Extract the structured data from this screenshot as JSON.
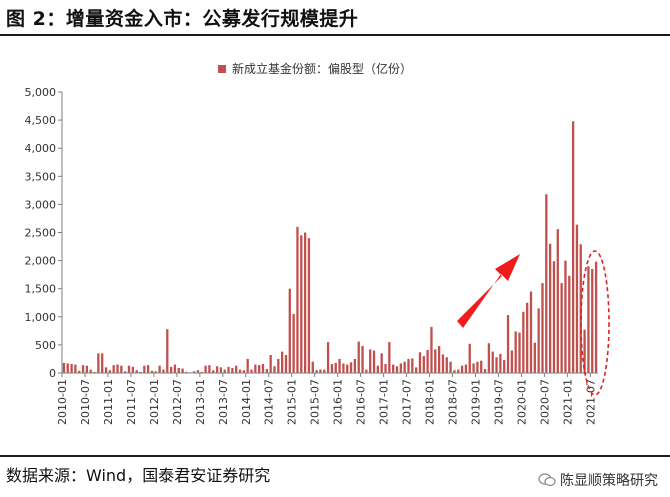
{
  "figure_title": "图 2：增量资金入市：公募发行规模提升",
  "source_text": "数据来源：Wind，国泰君安证券研究",
  "watermark_text": "陈显顺策略研究",
  "colors": {
    "bar": "#c0504d",
    "arrow": "#ee1c1c",
    "ellipse": "#e02020"
  },
  "chart_data": {
    "type": "bar",
    "title": "",
    "legend": "新成立基金份额：偏股型（亿份）",
    "legend_position": "top-center",
    "xlabel": "",
    "ylabel": "",
    "ylim": [
      0,
      5000
    ],
    "yticks": [
      0,
      500,
      1000,
      1500,
      2000,
      2500,
      3000,
      3500,
      4000,
      4500,
      5000
    ],
    "ytick_labels": [
      "0",
      "500",
      "1,000",
      "1,500",
      "2,000",
      "2,500",
      "3,000",
      "3,500",
      "4,000",
      "4,500",
      "5,000"
    ],
    "xtick_labels": [
      "2010-01",
      "2010-07",
      "2011-01",
      "2011-07",
      "2012-01",
      "2012-07",
      "2013-01",
      "2013-07",
      "2014-01",
      "2014-07",
      "2015-01",
      "2015-07",
      "2016-01",
      "2016-07",
      "2017-01",
      "2017-07",
      "2018-01",
      "2018-07",
      "2019-01",
      "2019-07",
      "2020-01",
      "2020-07",
      "2021-01",
      "2021-07"
    ],
    "grid": false,
    "categories": [
      "2010-01",
      "2010-02",
      "2010-03",
      "2010-04",
      "2010-05",
      "2010-06",
      "2010-07",
      "2010-08",
      "2010-09",
      "2010-10",
      "2010-11",
      "2010-12",
      "2011-01",
      "2011-02",
      "2011-03",
      "2011-04",
      "2011-05",
      "2011-06",
      "2011-07",
      "2011-08",
      "2011-09",
      "2011-10",
      "2011-11",
      "2011-12",
      "2012-01",
      "2012-02",
      "2012-03",
      "2012-04",
      "2012-05",
      "2012-06",
      "2012-07",
      "2012-08",
      "2012-09",
      "2012-10",
      "2012-11",
      "2012-12",
      "2013-01",
      "2013-02",
      "2013-03",
      "2013-04",
      "2013-05",
      "2013-06",
      "2013-07",
      "2013-08",
      "2013-09",
      "2013-10",
      "2013-11",
      "2013-12",
      "2014-01",
      "2014-02",
      "2014-03",
      "2014-04",
      "2014-05",
      "2014-06",
      "2014-07",
      "2014-08",
      "2014-09",
      "2014-10",
      "2014-11",
      "2014-12",
      "2015-01",
      "2015-02",
      "2015-03",
      "2015-04",
      "2015-05",
      "2015-06",
      "2015-07",
      "2015-08",
      "2015-09",
      "2015-10",
      "2015-11",
      "2015-12",
      "2016-01",
      "2016-02",
      "2016-03",
      "2016-04",
      "2016-05",
      "2016-06",
      "2016-07",
      "2016-08",
      "2016-09",
      "2016-10",
      "2016-11",
      "2016-12",
      "2017-01",
      "2017-02",
      "2017-03",
      "2017-04",
      "2017-05",
      "2017-06",
      "2017-07",
      "2017-08",
      "2017-09",
      "2017-10",
      "2017-11",
      "2017-12",
      "2018-01",
      "2018-02",
      "2018-03",
      "2018-04",
      "2018-05",
      "2018-06",
      "2018-07",
      "2018-08",
      "2018-09",
      "2018-10",
      "2018-11",
      "2018-12",
      "2019-01",
      "2019-02",
      "2019-03",
      "2019-04",
      "2019-05",
      "2019-06",
      "2019-07",
      "2019-08",
      "2019-09",
      "2019-10",
      "2019-11",
      "2019-12",
      "2020-01",
      "2020-02",
      "2020-03",
      "2020-04",
      "2020-05",
      "2020-06",
      "2020-07",
      "2020-08",
      "2020-09",
      "2020-10",
      "2020-11",
      "2020-12",
      "2021-01",
      "2021-02",
      "2021-03",
      "2021-04",
      "2021-05",
      "2021-06",
      "2021-07",
      "2021-08"
    ],
    "values": [
      180,
      170,
      160,
      150,
      40,
      140,
      130,
      60,
      20,
      350,
      350,
      100,
      50,
      140,
      150,
      130,
      30,
      130,
      110,
      50,
      20,
      130,
      140,
      40,
      30,
      130,
      60,
      780,
      110,
      150,
      90,
      80,
      20,
      10,
      30,
      50,
      20,
      130,
      140,
      50,
      120,
      100,
      60,
      110,
      90,
      130,
      60,
      50,
      250,
      60,
      150,
      140,
      160,
      70,
      320,
      120,
      250,
      380,
      320,
      1500,
      1050,
      2600,
      2450,
      2500,
      2400,
      200,
      50,
      60,
      60,
      550,
      160,
      180,
      250,
      170,
      150,
      190,
      250,
      560,
      480,
      60,
      420,
      400,
      130,
      350,
      160,
      550,
      150,
      120,
      170,
      200,
      250,
      260,
      100,
      370,
      300,
      410,
      820,
      420,
      480,
      330,
      280,
      200,
      50,
      60,
      130,
      150,
      520,
      170,
      200,
      220,
      70,
      530,
      380,
      280,
      340,
      230,
      1030,
      400,
      740,
      720,
      1090,
      1250,
      1450,
      540,
      1150,
      1600,
      3180,
      2300,
      1990,
      2560,
      1600,
      2000,
      1730,
      4480,
      2640,
      2290,
      770,
      1900,
      1850,
      1980
    ]
  }
}
